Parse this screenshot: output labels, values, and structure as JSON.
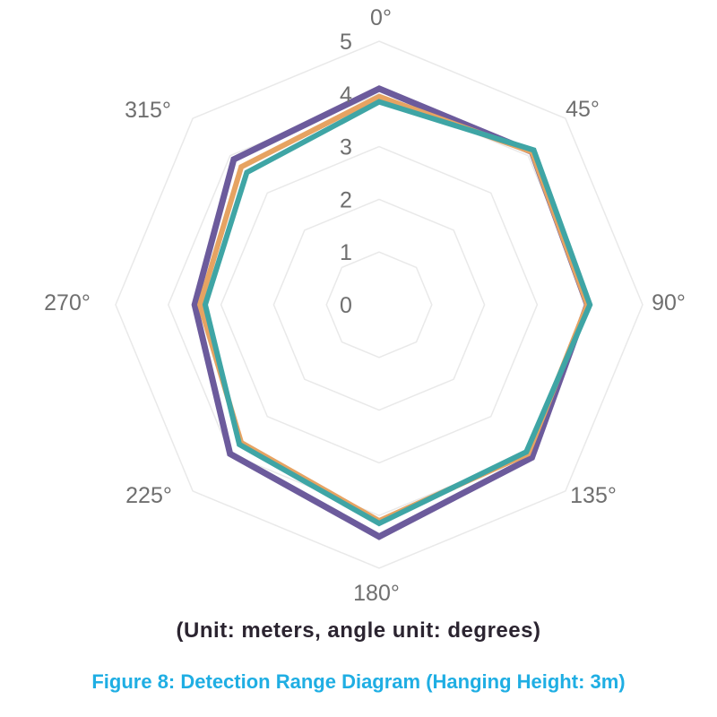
{
  "figure": {
    "captions": {
      "unit_note": "(Unit: meters, angle unit: degrees)",
      "figure_label": "Figure 8: Detection Range Diagram (Hanging Height: 3m)"
    }
  },
  "chart_data": {
    "type": "radar",
    "title": "",
    "categories": [
      "0°",
      "45°",
      "90°",
      "135°",
      "180°",
      "225°",
      "270°",
      "315°"
    ],
    "angles_deg": [
      0,
      45,
      90,
      135,
      180,
      225,
      270,
      315
    ],
    "series": [
      {
        "name": "purple",
        "color": "#6c5b9c",
        "values": [
          4.1,
          4.1,
          3.95,
          4.1,
          4.4,
          4.0,
          3.5,
          3.9
        ]
      },
      {
        "name": "orange",
        "color": "#e6a362",
        "values": [
          3.95,
          4.1,
          3.95,
          4.0,
          4.1,
          3.7,
          3.4,
          3.7
        ]
      },
      {
        "name": "teal",
        "color": "#3fa5a5",
        "values": [
          3.85,
          4.15,
          4.0,
          3.95,
          4.15,
          3.75,
          3.3,
          3.55
        ]
      }
    ],
    "radial_ticks": [
      "0",
      "1",
      "2",
      "3",
      "4",
      "5"
    ],
    "rlim": [
      0,
      5
    ],
    "grid": "concentric octagon rings, no radial spokes",
    "legend": "none"
  },
  "colors": {
    "background": "#ffffff",
    "grid": "#e9e9e9",
    "axis_label": "#6f6f6f",
    "unit_caption": "#2b2430",
    "figure_caption": "#1faee3"
  }
}
